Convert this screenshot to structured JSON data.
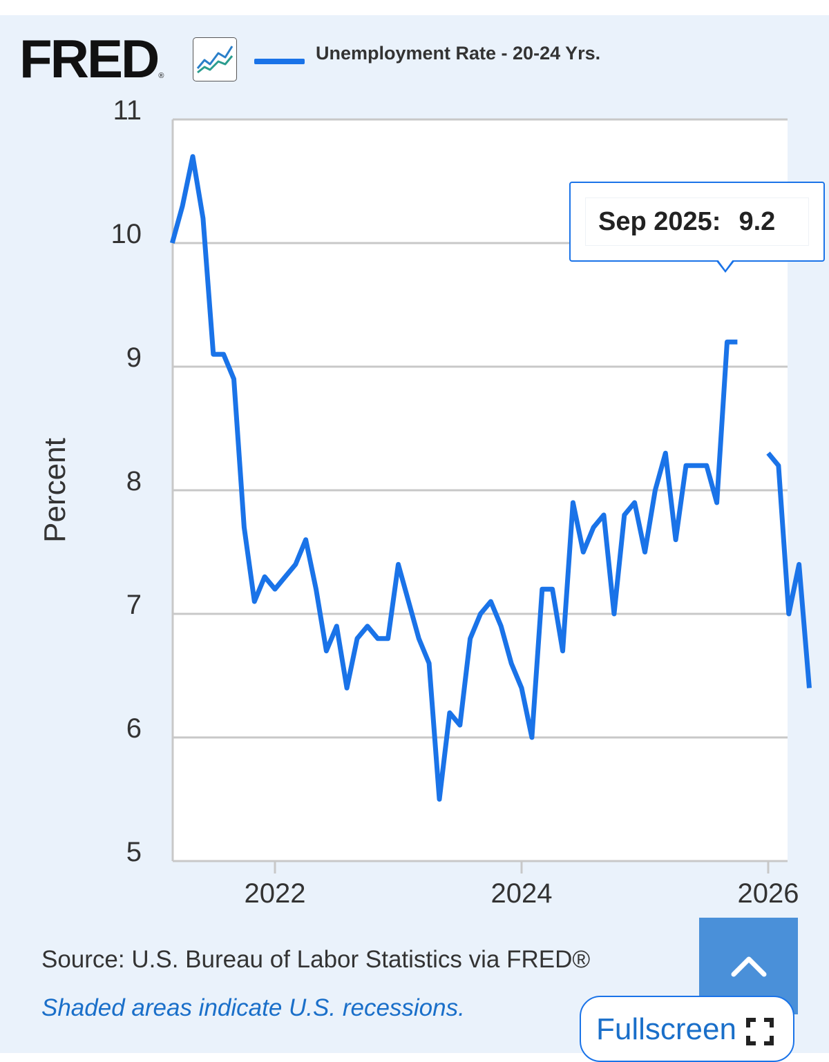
{
  "branding": {
    "logo_text": "FRED",
    "logo_reg": "®"
  },
  "colors": {
    "series": "#1a73e8",
    "panel_bg": "#eaf2fb",
    "link": "#1a6fc9"
  },
  "chart_data": {
    "type": "line",
    "series": [
      {
        "name": "Unemployment Rate - 20-24 Yrs.",
        "color": "#1a73e8",
        "points": [
          [
            "2021-03",
            10.0
          ],
          [
            "2021-04",
            10.3
          ],
          [
            "2021-05",
            10.7
          ],
          [
            "2021-06",
            10.2
          ],
          [
            "2021-07",
            9.1
          ],
          [
            "2021-08",
            9.1
          ],
          [
            "2021-09",
            8.9
          ],
          [
            "2021-10",
            7.7
          ],
          [
            "2021-11",
            7.1
          ],
          [
            "2021-12",
            7.3
          ],
          [
            "2022-01",
            7.2
          ],
          [
            "2022-02",
            7.3
          ],
          [
            "2022-03",
            7.4
          ],
          [
            "2022-04",
            7.6
          ],
          [
            "2022-05",
            7.2
          ],
          [
            "2022-06",
            6.7
          ],
          [
            "2022-07",
            6.9
          ],
          [
            "2022-08",
            6.4
          ],
          [
            "2022-09",
            6.8
          ],
          [
            "2022-10",
            6.9
          ],
          [
            "2022-11",
            6.8
          ],
          [
            "2022-12",
            6.8
          ],
          [
            "2023-01",
            7.4
          ],
          [
            "2023-02",
            7.1
          ],
          [
            "2023-03",
            6.8
          ],
          [
            "2023-04",
            6.6
          ],
          [
            "2023-05",
            5.5
          ],
          [
            "2023-06",
            6.2
          ],
          [
            "2023-07",
            6.1
          ],
          [
            "2023-08",
            6.8
          ],
          [
            "2023-09",
            7.0
          ],
          [
            "2023-10",
            7.1
          ],
          [
            "2023-11",
            6.9
          ],
          [
            "2023-12",
            6.6
          ],
          [
            "2024-01",
            6.4
          ],
          [
            "2024-02",
            6.0
          ],
          [
            "2024-03",
            7.2
          ],
          [
            "2024-04",
            7.2
          ],
          [
            "2024-05",
            6.7
          ],
          [
            "2024-06",
            7.9
          ],
          [
            "2024-07",
            7.5
          ],
          [
            "2024-08",
            7.7
          ],
          [
            "2024-09",
            7.8
          ],
          [
            "2024-10",
            7.0
          ],
          [
            "2024-11",
            7.8
          ],
          [
            "2024-12",
            7.9
          ],
          [
            "2025-01",
            7.5
          ],
          [
            "2025-02",
            8.0
          ],
          [
            "2025-03",
            8.3
          ],
          [
            "2025-04",
            7.6
          ],
          [
            "2025-05",
            8.2
          ],
          [
            "2025-06",
            8.2
          ],
          [
            "2025-07",
            8.2
          ],
          [
            "2025-08",
            7.9
          ],
          [
            "2025-09",
            9.2
          ],
          [
            "2025-10",
            9.2
          ],
          [
            "2025-11",
            null
          ],
          [
            "2025-12",
            null
          ],
          [
            "2026-01",
            8.3
          ],
          [
            "2026-02",
            8.2
          ],
          [
            "2026-03",
            7.0
          ],
          [
            "2026-04",
            7.4
          ],
          [
            "2026-05",
            6.4
          ]
        ]
      }
    ],
    "ylabel": "Percent",
    "y_ticks": [
      5,
      6,
      7,
      8,
      9,
      10,
      11
    ],
    "ylim": [
      5,
      11
    ],
    "x_ticks": [
      "2022",
      "2024",
      "2026"
    ],
    "xlim": [
      "2021-03",
      "2026-05"
    ],
    "grid": true,
    "legend": "top"
  },
  "tooltip": {
    "date": "Sep 2025",
    "separator": ":",
    "value": "9.2"
  },
  "footer": {
    "source": "Source: U.S. Bureau of Labor Statistics via FRED®",
    "recession_note": "Shaded areas indicate U.S. recessions."
  },
  "controls": {
    "fullscreen_label": "Fullscreen",
    "fullscreen_icon": "fullscreen-icon",
    "scroll_top_icon": "chevron-up-icon"
  }
}
